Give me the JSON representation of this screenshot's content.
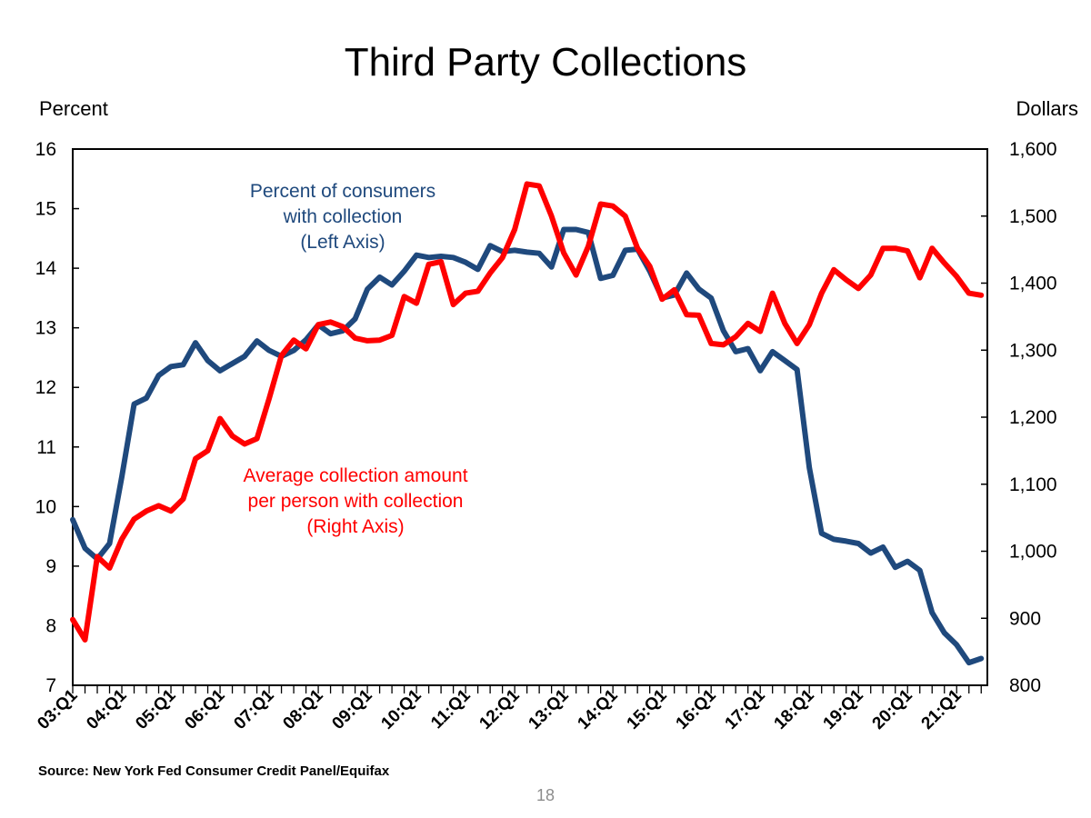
{
  "page_number": "18",
  "source": "Source: New York Fed Consumer Credit Panel/Equifax",
  "colors": {
    "blue_series": "#1F497D",
    "red_series": "#FF0000"
  },
  "chart_data": {
    "type": "line",
    "title": "Third Party Collections",
    "ylabel_left": "Percent",
    "ylabel_right": "Dollars",
    "ylim_left": [
      7,
      16
    ],
    "ylim_right": [
      800,
      1600
    ],
    "yticks_left": [
      "7",
      "8",
      "9",
      "10",
      "11",
      "12",
      "13",
      "14",
      "15",
      "16"
    ],
    "yticks_right": [
      "800",
      "900",
      "1,000",
      "1,100",
      "1,200",
      "1,300",
      "1,400",
      "1,500",
      "1,600"
    ],
    "x_tick_labels": [
      "03:Q1",
      "04:Q1",
      "05:Q1",
      "06:Q1",
      "07:Q1",
      "08:Q1",
      "09:Q1",
      "10:Q1",
      "11:Q1",
      "12:Q1",
      "13:Q1",
      "14:Q1",
      "15:Q1",
      "16:Q1",
      "17:Q1",
      "18:Q1",
      "19:Q1",
      "20:Q1",
      "21:Q1"
    ],
    "quarters_start": "03:Q1",
    "quarters_count": 75,
    "series": [
      {
        "name": "Percent of consumers with collection",
        "axis": "left",
        "annotation": [
          "Percent of consumers",
          "with collection",
          "(Left Axis)"
        ],
        "values": [
          9.78,
          9.3,
          9.12,
          9.38,
          10.5,
          11.72,
          11.82,
          12.2,
          12.35,
          12.38,
          12.75,
          12.45,
          12.28,
          12.4,
          12.52,
          12.78,
          12.62,
          12.52,
          12.62,
          12.8,
          13.05,
          12.9,
          12.95,
          13.15,
          13.65,
          13.85,
          13.72,
          13.95,
          14.22,
          14.18,
          14.2,
          14.18,
          14.1,
          13.98,
          14.38,
          14.28,
          14.3,
          14.27,
          14.25,
          14.02,
          14.65,
          14.65,
          14.6,
          13.83,
          13.88,
          14.3,
          14.32,
          13.95,
          13.5,
          13.55,
          13.92,
          13.65,
          13.5,
          12.95,
          12.6,
          12.65,
          12.28,
          12.6,
          12.45,
          12.3,
          10.65,
          9.55,
          9.45,
          9.42,
          9.38,
          9.22,
          9.32,
          8.98,
          9.08,
          8.93,
          8.22,
          7.88,
          7.68,
          7.38,
          7.45
        ]
      },
      {
        "name": "Average collection amount per person with collection",
        "axis": "right",
        "annotation": [
          "Average collection amount",
          "per person with collection",
          "(Right Axis)"
        ],
        "values": [
          898,
          868,
          992,
          975,
          1018,
          1048,
          1060,
          1068,
          1060,
          1078,
          1138,
          1150,
          1198,
          1172,
          1160,
          1168,
          1228,
          1292,
          1315,
          1302,
          1338,
          1342,
          1335,
          1318,
          1314,
          1315,
          1322,
          1380,
          1370,
          1428,
          1432,
          1368,
          1385,
          1388,
          1415,
          1438,
          1480,
          1548,
          1545,
          1500,
          1445,
          1412,
          1455,
          1518,
          1515,
          1500,
          1452,
          1425,
          1376,
          1390,
          1353,
          1352,
          1310,
          1308,
          1320,
          1340,
          1328,
          1385,
          1340,
          1310,
          1338,
          1385,
          1420,
          1405,
          1392,
          1412,
          1452,
          1452,
          1448,
          1408,
          1452,
          1430,
          1410,
          1385,
          1382
        ]
      }
    ]
  }
}
